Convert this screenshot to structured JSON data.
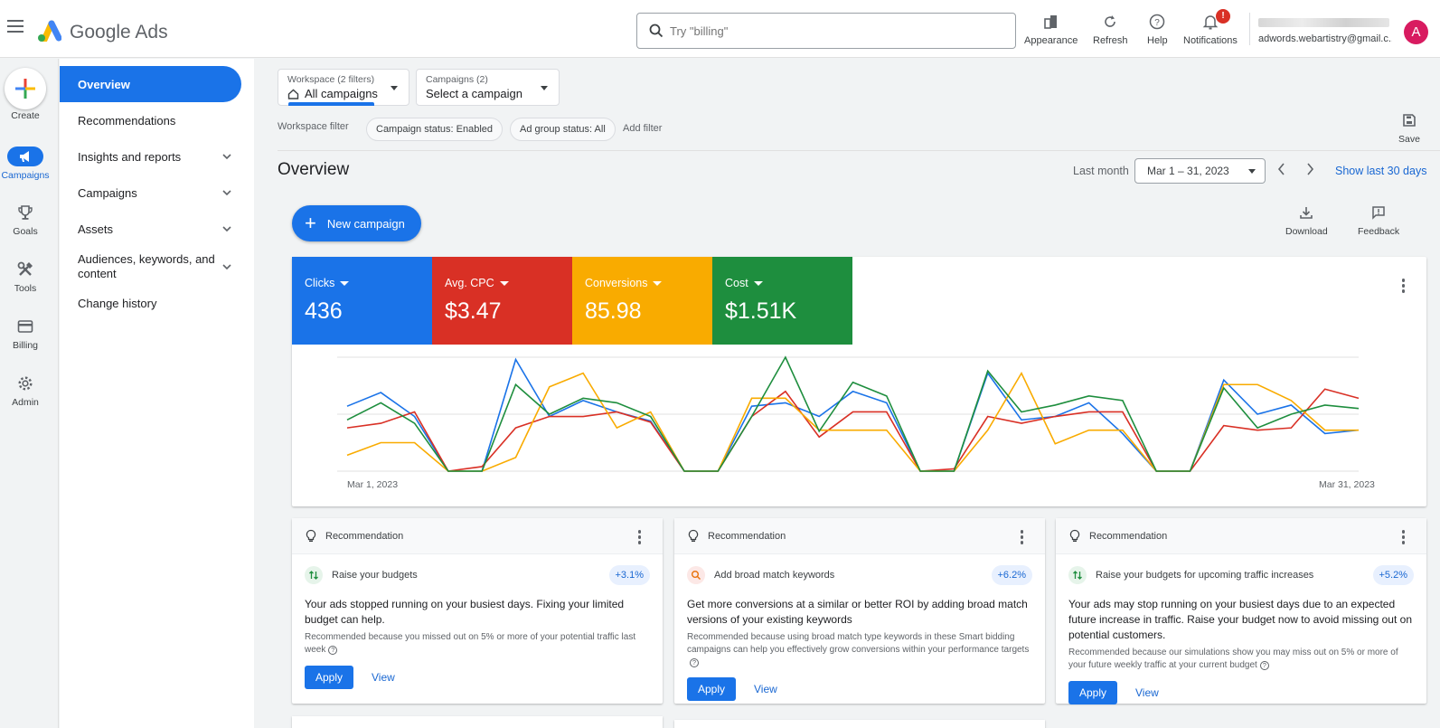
{
  "app": {
    "brand": "Google Ads"
  },
  "search": {
    "placeholder": "Try \"billing\""
  },
  "toolbar": {
    "appearance": "Appearance",
    "refresh": "Refresh",
    "help": "Help",
    "notifications": "Notifications",
    "notification_count": "!",
    "account_email": "adwords.webartistry@gmail.c...",
    "avatar_letter": "A"
  },
  "rail": {
    "create": "Create",
    "campaigns": "Campaigns",
    "goals": "Goals",
    "tools": "Tools",
    "billing": "Billing",
    "admin": "Admin"
  },
  "nav": {
    "items": [
      {
        "label": "Overview"
      },
      {
        "label": "Recommendations"
      },
      {
        "label": "Insights and reports"
      },
      {
        "label": "Campaigns"
      },
      {
        "label": "Assets"
      },
      {
        "label": "Audiences, keywords, and content"
      },
      {
        "label": "Change history"
      }
    ]
  },
  "workspace": {
    "label": "Workspace (2 filters)",
    "value": "All campaigns",
    "campaigns_label": "Campaigns (2)",
    "campaigns_value": "Select a campaign",
    "filter_label": "Workspace filter",
    "chips": [
      "Campaign status: Enabled",
      "Ad group status: All"
    ],
    "add_filter": "Add filter",
    "save": "Save"
  },
  "overview": {
    "title": "Overview",
    "range_label": "Last month",
    "date_range": "Mar 1 – 31, 2023",
    "show_last": "Show last 30 days",
    "new_campaign": "New campaign",
    "download": "Download",
    "feedback": "Feedback"
  },
  "metrics": [
    {
      "label": "Clicks",
      "value": "436",
      "color": "#1a73e8"
    },
    {
      "label": "Avg. CPC",
      "value": "$3.47",
      "color": "#d93025"
    },
    {
      "label": "Conversions",
      "value": "85.98",
      "color": "#f9ab00"
    },
    {
      "label": "Cost",
      "value": "$1.51K",
      "color": "#1e8e3e"
    }
  ],
  "chart_data": {
    "type": "line",
    "xlabel": "",
    "ylabel": "",
    "x_start_label": "Mar 1, 2023",
    "x_end_label": "Mar 31, 2023",
    "x": [
      1,
      2,
      3,
      4,
      5,
      6,
      7,
      8,
      9,
      10,
      11,
      12,
      13,
      14,
      15,
      16,
      17,
      18,
      19,
      20,
      21,
      22,
      23,
      24,
      25,
      26,
      27,
      28,
      29,
      30,
      31
    ],
    "y_normalized_note": "",
    "series": [
      {
        "name": "Clicks",
        "color": "#1a73e8",
        "values": [
          0.57,
          0.69,
          0.48,
          0,
          0,
          0.98,
          0.48,
          0.62,
          0.52,
          0.44,
          0,
          0,
          0.57,
          0.6,
          0.48,
          0.7,
          0.6,
          0,
          0,
          0.86,
          0.45,
          0.48,
          0.6,
          0.33,
          0,
          0,
          0.8,
          0.5,
          0.58,
          0.33,
          0.36
        ]
      },
      {
        "name": "Avg. CPC",
        "color": "#d93025",
        "values": [
          0.38,
          0.42,
          0.52,
          0,
          0.04,
          0.38,
          0.48,
          0.48,
          0.52,
          0.43,
          0,
          0,
          0.48,
          0.7,
          0.3,
          0.52,
          0.52,
          0,
          0.02,
          0.48,
          0.42,
          0.48,
          0.52,
          0.52,
          0,
          0,
          0.4,
          0.36,
          0.38,
          0.72,
          0.64
        ]
      },
      {
        "name": "Conversions",
        "color": "#f9ab00",
        "values": [
          0.14,
          0.25,
          0.25,
          0,
          0,
          0.12,
          0.74,
          0.86,
          0.38,
          0.52,
          0,
          0,
          0.64,
          0.64,
          0.36,
          0.36,
          0.36,
          0,
          0,
          0.36,
          0.86,
          0.24,
          0.36,
          0.36,
          0,
          0,
          0.76,
          0.76,
          0.62,
          0.36,
          0.36
        ]
      },
      {
        "name": "Cost",
        "color": "#1e8e3e",
        "values": [
          0.45,
          0.6,
          0.42,
          0,
          0,
          0.76,
          0.5,
          0.64,
          0.6,
          0.48,
          0,
          0,
          0.48,
          1.0,
          0.35,
          0.78,
          0.66,
          0,
          0,
          0.88,
          0.52,
          0.58,
          0.66,
          0.62,
          0,
          0,
          0.73,
          0.38,
          0.5,
          0.58,
          0.55
        ]
      }
    ]
  },
  "recommendations": [
    {
      "header": "Recommendation",
      "sub": "Raise your budgets",
      "pct": "+3.1%",
      "title": "Your ads stopped running on your busiest days. Fixing your limited budget can help.",
      "desc": "Recommended because you missed out on 5% or more of your potential traffic last week",
      "apply": "Apply",
      "view": "View"
    },
    {
      "header": "Recommendation",
      "sub": "Add broad match keywords",
      "pct": "+6.2%",
      "title": "Get more conversions at a similar or better ROI by adding broad match versions of your existing keywords",
      "desc": "Recommended because using broad match type keywords in these Smart bidding campaigns can help you effectively grow conversions within your performance targets",
      "apply": "Apply",
      "view": "View"
    },
    {
      "header": "Recommendation",
      "sub": "Raise your budgets for upcoming traffic increases",
      "pct": "+5.2%",
      "title": "Your ads may stop running on your busiest days due to an expected future increase in traffic. Raise your budget now to avoid missing out on potential customers.",
      "desc": "Recommended because our simulations show you may miss out on 5% or more of your future weekly traffic at your current budget",
      "apply": "Apply",
      "view": "View"
    }
  ]
}
